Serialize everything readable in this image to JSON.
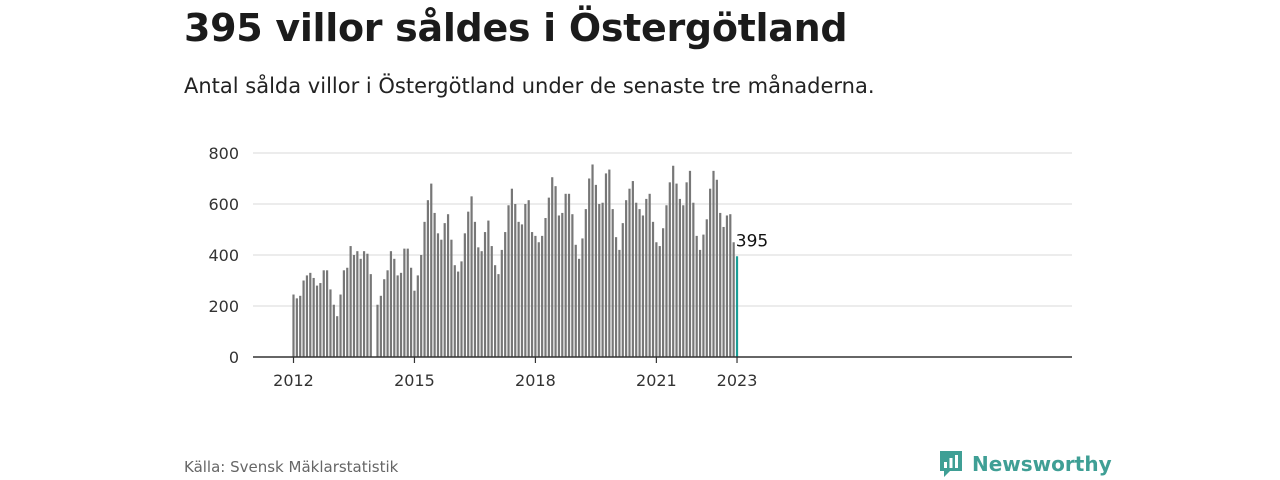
{
  "header": {
    "title": "395 villor såldes i Östergötland",
    "subtitle": "Antal sålda villor i Östergötland under de senaste tre månaderna."
  },
  "footer": {
    "source": "Källa: Svensk Mäklarstatistik",
    "brand": "Newsworthy",
    "brand_icon": "bar-chart-logo-icon"
  },
  "colors": {
    "bar": "#777777",
    "highlight": "#1a9e96",
    "grid": "#d9d9d9",
    "axis": "#333333",
    "brand": "#3f9f95"
  },
  "chart_data": {
    "type": "bar",
    "xlabel": "",
    "ylabel": "",
    "ylim": [
      0,
      800
    ],
    "yticks": [
      0,
      200,
      400,
      600,
      800
    ],
    "xticks": [
      "2012",
      "2015",
      "2018",
      "2021",
      "2023"
    ],
    "x_start": "2012-01",
    "x_end": "2023-01",
    "grid": true,
    "highlight": {
      "x": "2023-01",
      "value": 395,
      "label": "395"
    },
    "series": [
      {
        "values": [
          245,
          230,
          240,
          300,
          320,
          330,
          310,
          280,
          290,
          340,
          340,
          265,
          205,
          160,
          245,
          340,
          350,
          435,
          400,
          415,
          385,
          415,
          405,
          325,
          null,
          205,
          240,
          305,
          340,
          415,
          385,
          320,
          330,
          425,
          425,
          350,
          260,
          320,
          400,
          530,
          615,
          680,
          565,
          485,
          460,
          525,
          560,
          460,
          360,
          335,
          375,
          485,
          570,
          630,
          530,
          430,
          415,
          490,
          535,
          435,
          360,
          325,
          420,
          490,
          595,
          660,
          600,
          530,
          520,
          600,
          615,
          490,
          475,
          450,
          475,
          545,
          625,
          705,
          670,
          555,
          565,
          640,
          640,
          560,
          440,
          385,
          465,
          580,
          700,
          755,
          675,
          600,
          605,
          720,
          735,
          580,
          470,
          420,
          525,
          615,
          660,
          690,
          605,
          580,
          555,
          620,
          640,
          530,
          450,
          435,
          505,
          595,
          685,
          750,
          680,
          620,
          595,
          685,
          730,
          605,
          475,
          420,
          480,
          540,
          660,
          730,
          695,
          565,
          510,
          555,
          560,
          450,
          395
        ]
      }
    ]
  }
}
